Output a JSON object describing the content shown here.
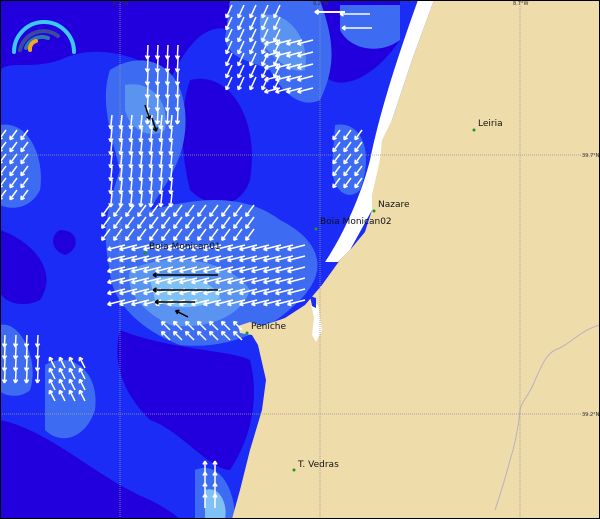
{
  "map": {
    "grid_labels": {
      "lon": [
        "9.7°W",
        "9.2°W",
        "8.7°W"
      ],
      "lat": [
        "39.7°N",
        "39.2°N"
      ]
    },
    "places": [
      {
        "name": "Leiria"
      },
      {
        "name": "Nazare"
      },
      {
        "name": "Boia Monican02"
      },
      {
        "name": "Boia Monican01"
      },
      {
        "name": "Peniche"
      },
      {
        "name": "T. Vedras"
      }
    ],
    "logo": "wave-gauge-logo",
    "colors": {
      "ocean_deep": "#2200dd",
      "ocean_mid": "#1a2cf5",
      "ocean_light": "#3d6cf2",
      "ocean_lighter": "#5a94f0",
      "ocean_lightest": "#7fc0f5",
      "land": "#eedcaa",
      "arrow": "#ffffff",
      "arrow_strong": "#000000"
    }
  }
}
